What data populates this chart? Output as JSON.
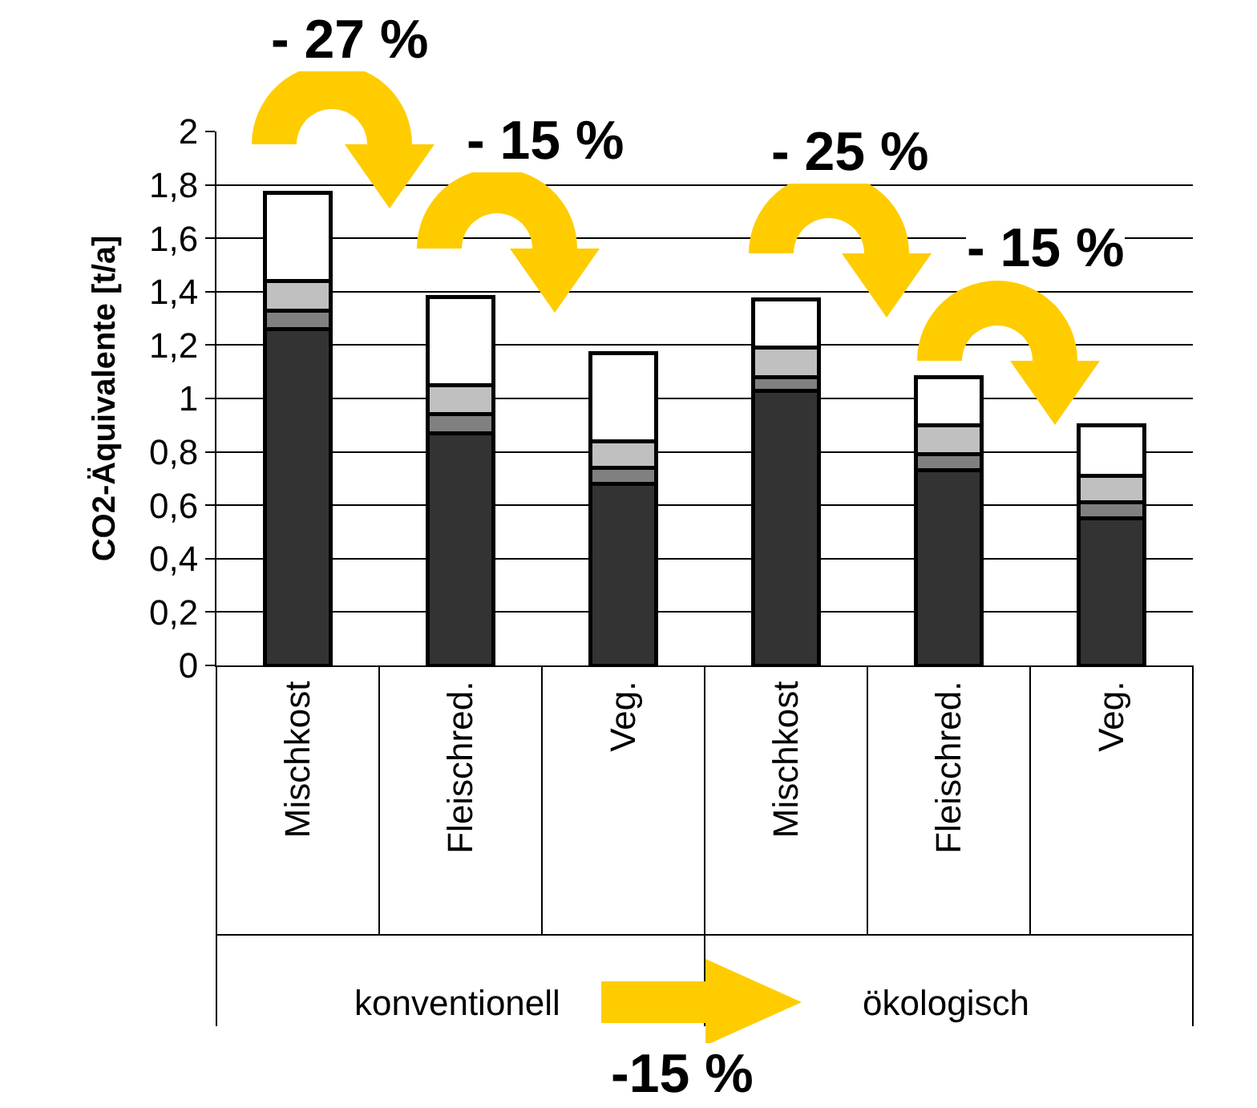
{
  "chart_data": {
    "type": "bar",
    "stacked": true,
    "ylabel": "CO2-Äquivalente [t/a]",
    "categories": [
      "Mischkost",
      "Fleischred.",
      "Veg.",
      "Mischkost",
      "Fleischred.",
      "Veg."
    ],
    "series": [
      {
        "color": "#333333",
        "values": [
          1.26,
          0.87,
          0.68,
          1.03,
          0.73,
          0.55
        ]
      },
      {
        "color": "#808080",
        "values": [
          0.07,
          0.07,
          0.06,
          0.05,
          0.06,
          0.06
        ]
      },
      {
        "color": "#c0c0c0",
        "values": [
          0.11,
          0.11,
          0.1,
          0.11,
          0.11,
          0.1
        ]
      },
      {
        "color": "#ffffff",
        "values": [
          0.33,
          0.33,
          0.33,
          0.18,
          0.18,
          0.19
        ]
      }
    ],
    "ylim": [
      0,
      2
    ],
    "yticks": [
      0,
      {
        "value": 0.2,
        "label": "0,2"
      },
      {
        "value": 0.4,
        "label": "0,4"
      },
      {
        "value": 0.6,
        "label": "0,6"
      },
      {
        "value": 0.8,
        "label": "0,8"
      },
      1,
      {
        "value": 1.2,
        "label": "1,2"
      },
      {
        "value": 1.4,
        "label": "1,4"
      },
      {
        "value": 1.6,
        "label": "1,6"
      },
      {
        "value": 1.8,
        "label": "1,8"
      },
      2
    ],
    "grid": "y",
    "annotations": [
      "- 27 %",
      "- 15 %",
      "- 25 %",
      "- 15 %",
      "konventionell",
      "ökologisch",
      "-15 %"
    ]
  }
}
